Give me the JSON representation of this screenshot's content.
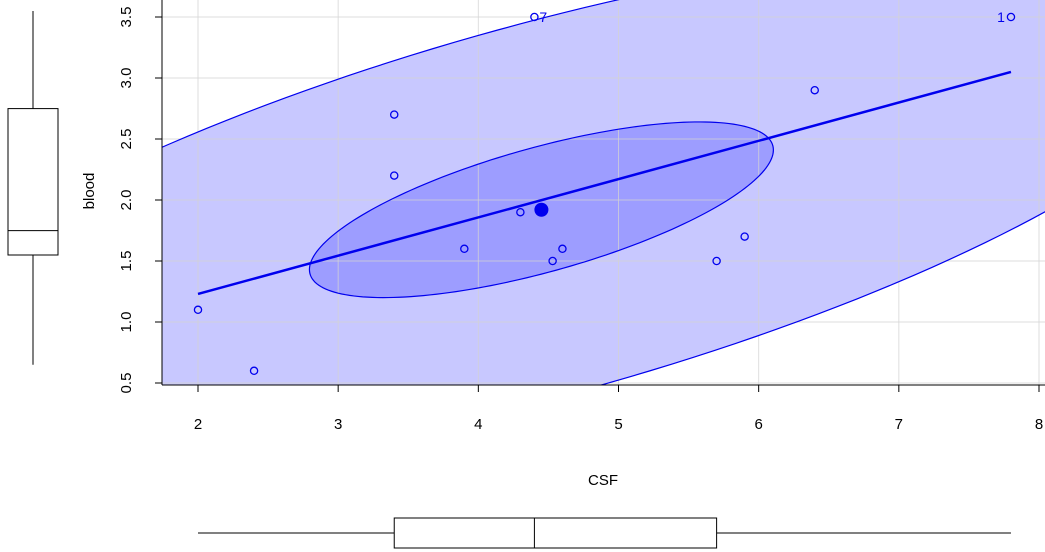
{
  "chart_data": {
    "type": "scatter",
    "xlabel": "CSF",
    "ylabel": "blood",
    "xlim": [
      1.8,
      8.0
    ],
    "ylim": [
      0.5,
      3.5
    ],
    "x_ticks": [
      "2",
      "3",
      "4",
      "5",
      "6",
      "7",
      "8"
    ],
    "y_ticks": [
      "0.5",
      "1.0",
      "1.5",
      "2.0",
      "2.5",
      "3.0",
      "3.5"
    ],
    "grid": true,
    "points": [
      {
        "x": 7.8,
        "y": 3.5,
        "label": "1"
      },
      {
        "x": 4.4,
        "y": 3.5,
        "label": "7"
      },
      {
        "x": 6.4,
        "y": 2.9,
        "label": ""
      },
      {
        "x": 3.4,
        "y": 2.7,
        "label": ""
      },
      {
        "x": 3.4,
        "y": 2.2,
        "label": ""
      },
      {
        "x": 4.3,
        "y": 1.9,
        "label": ""
      },
      {
        "x": 3.9,
        "y": 1.6,
        "label": ""
      },
      {
        "x": 4.6,
        "y": 1.6,
        "label": ""
      },
      {
        "x": 4.53,
        "y": 1.5,
        "label": ""
      },
      {
        "x": 5.9,
        "y": 1.7,
        "label": ""
      },
      {
        "x": 5.7,
        "y": 1.5,
        "label": ""
      },
      {
        "x": 2.0,
        "y": 1.1,
        "label": ""
      },
      {
        "x": 2.4,
        "y": 0.6,
        "label": ""
      }
    ],
    "centroid": {
      "x": 4.45,
      "y": 1.92
    },
    "regression_line": {
      "x_start": 2.0,
      "y_start": 1.23,
      "x_end": 7.8,
      "y_end": 3.05
    },
    "ellipse_inner": {
      "center_x": 4.45,
      "center_y": 1.92,
      "extreme_points": [
        [
          6.1,
          2.41
        ],
        [
          2.79,
          1.43
        ],
        [
          5.33,
          2.64
        ],
        [
          3.57,
          1.2
        ]
      ]
    },
    "ellipse_outer": {
      "center_x": 4.45,
      "center_y": 1.92,
      "extreme_points": [
        [
          9.41,
          3.39
        ],
        [
          -0.51,
          0.45
        ],
        [
          7.08,
          4.07
        ],
        [
          1.82,
          -0.23
        ]
      ]
    },
    "boxplot_x": {
      "min": 2.0,
      "q1": 3.4,
      "median": 4.4,
      "q3": 5.7,
      "max": 7.8
    },
    "boxplot_y": {
      "min": 0.6,
      "q1": 1.5,
      "median": 1.7,
      "q3": 2.7,
      "max": 3.5
    },
    "colors": {
      "series": "#0000ee",
      "outer_fill": "#c8c8ff",
      "inner_fill": "#9d9dff",
      "grid": "#d3d3d3",
      "axis": "#000000"
    }
  }
}
